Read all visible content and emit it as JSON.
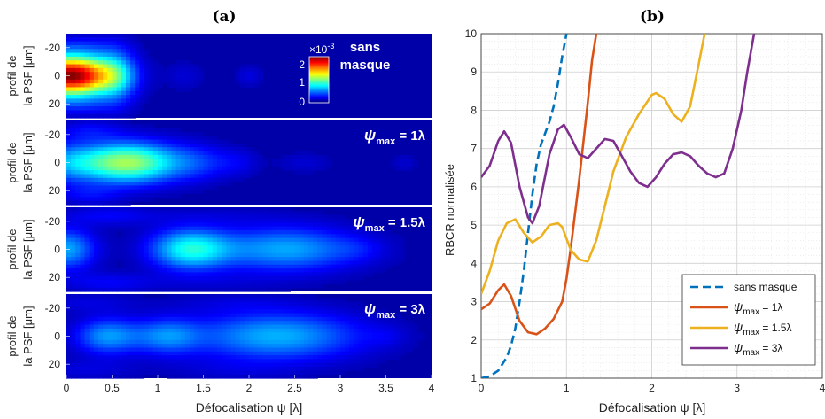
{
  "panel_a": {
    "label": "(a)",
    "xlabel": "Défocalisation ψ [λ]",
    "xticks": [
      "0",
      "0.5",
      "1",
      "1.5",
      "2",
      "2.5",
      "3",
      "3.5",
      "4"
    ],
    "ylabel_line1": "profil de",
    "ylabel_line2": "la PSF [μm]",
    "yticks": [
      "-20",
      "0",
      "20"
    ],
    "colorbar": {
      "exponent": "×10",
      "exp_power": "-3",
      "ticks": [
        "2",
        "1",
        "0"
      ]
    },
    "rows": [
      {
        "annot_line1": "sans",
        "annot_line2": "masque"
      },
      {
        "annot": "ψ",
        "annot_sub": "max",
        "annot_value": " = 1λ"
      },
      {
        "annot": "ψ",
        "annot_sub": "max",
        "annot_value": " = 1.5λ"
      },
      {
        "annot": "ψ",
        "annot_sub": "max",
        "annot_value": " = 3λ"
      }
    ]
  },
  "panel_b": {
    "label": "(b)",
    "xlabel": "Défocalisation ψ [λ]",
    "ylabel": "RBCR normalisée",
    "legend_placement": "bottom-right"
  },
  "chart_data": [
    {
      "type": "heatmap",
      "x_range": [
        0,
        4
      ],
      "y_range": [
        -30,
        30
      ],
      "color_range": [
        0,
        0.0023
      ],
      "colormap": "jet",
      "rows": [
        {
          "peaks": [
            {
              "x": 0.05,
              "y": 0,
              "amp": 2.3,
              "sx": 0.33,
              "sy": 10
            },
            {
              "x": 0.55,
              "y": 0,
              "amp": 0.42,
              "sx": 0.15,
              "sy": 14
            },
            {
              "x": 0.15,
              "y": -22,
              "amp": 0.15,
              "sx": 0.3,
              "sy": 5
            },
            {
              "x": 0.15,
              "y": 22,
              "amp": 0.15,
              "sx": 0.3,
              "sy": 5
            },
            {
              "x": 1.3,
              "y": 0,
              "amp": 0.1,
              "sx": 0.15,
              "sy": 7
            },
            {
              "x": 2.0,
              "y": 0,
              "amp": 0.13,
              "sx": 0.1,
              "sy": 5
            }
          ]
        },
        {
          "peaks": [
            {
              "x": 0.65,
              "y": 0,
              "amp": 1.2,
              "sx": 0.42,
              "sy": 10
            },
            {
              "x": 0.0,
              "y": 0,
              "amp": 0.3,
              "sx": 0.2,
              "sy": 10
            },
            {
              "x": 0.25,
              "y": -23,
              "amp": 0.18,
              "sx": 0.25,
              "sy": 5
            },
            {
              "x": 0.25,
              "y": 23,
              "amp": 0.18,
              "sx": 0.25,
              "sy": 5
            },
            {
              "x": 1.45,
              "y": 0,
              "amp": 0.2,
              "sx": 0.2,
              "sy": 9
            },
            {
              "x": 1.85,
              "y": 0,
              "amp": 0.16,
              "sx": 0.18,
              "sy": 7
            },
            {
              "x": 2.6,
              "y": 0,
              "amp": 0.1,
              "sx": 0.2,
              "sy": 5
            },
            {
              "x": 3.7,
              "y": 0,
              "amp": 0.09,
              "sx": 0.1,
              "sy": 4
            }
          ]
        },
        {
          "peaks": [
            {
              "x": 0.0,
              "y": 0,
              "amp": 0.6,
              "sx": 0.22,
              "sy": 10
            },
            {
              "x": 1.35,
              "y": 0,
              "amp": 0.8,
              "sx": 0.3,
              "sy": 10
            },
            {
              "x": 2.4,
              "y": 0,
              "amp": 0.6,
              "sx": 0.55,
              "sy": 11
            },
            {
              "x": 0.45,
              "y": -24,
              "amp": 0.18,
              "sx": 0.35,
              "sy": 5
            },
            {
              "x": 0.45,
              "y": 24,
              "amp": 0.18,
              "sx": 0.35,
              "sy": 5
            },
            {
              "x": 1.6,
              "y": -24,
              "amp": 0.07,
              "sx": 0.6,
              "sy": 5
            },
            {
              "x": 1.6,
              "y": 24,
              "amp": 0.07,
              "sx": 0.6,
              "sy": 5
            },
            {
              "x": 3.2,
              "y": 0,
              "amp": 0.1,
              "sx": 0.2,
              "sy": 6
            }
          ]
        },
        {
          "peaks": [
            {
              "x": 0.45,
              "y": 0,
              "amp": 0.55,
              "sx": 0.25,
              "sy": 9
            },
            {
              "x": 1.1,
              "y": 0,
              "amp": 0.45,
              "sx": 0.25,
              "sy": 9
            },
            {
              "x": 2.3,
              "y": 0,
              "amp": 0.62,
              "sx": 0.65,
              "sy": 12
            },
            {
              "x": 0.2,
              "y": -24,
              "amp": 0.12,
              "sx": 0.4,
              "sy": 5
            },
            {
              "x": 0.2,
              "y": 24,
              "amp": 0.12,
              "sx": 0.4,
              "sy": 5
            },
            {
              "x": 1.8,
              "y": -24,
              "amp": 0.08,
              "sx": 0.5,
              "sy": 5
            },
            {
              "x": 1.8,
              "y": 24,
              "amp": 0.08,
              "sx": 0.5,
              "sy": 5
            },
            {
              "x": 3.5,
              "y": 0,
              "amp": 0.08,
              "sx": 0.15,
              "sy": 5
            }
          ]
        }
      ]
    },
    {
      "type": "line",
      "xlim": [
        0,
        4
      ],
      "ylim": [
        1,
        10
      ],
      "xticks": [
        0,
        1,
        2,
        3,
        4
      ],
      "yticks": [
        1,
        2,
        3,
        4,
        5,
        6,
        7,
        8,
        9,
        10
      ],
      "grid": true,
      "series": [
        {
          "name": "sans masque",
          "color": "#0072bd",
          "style": "dashed",
          "x": [
            0,
            0.1,
            0.2,
            0.3,
            0.35,
            0.4,
            0.45,
            0.5,
            0.55,
            0.6,
            0.65,
            0.7,
            0.75,
            0.8,
            0.85,
            0.9,
            0.95,
            1.0
          ],
          "y": [
            1.0,
            1.05,
            1.2,
            1.55,
            1.85,
            2.3,
            3.0,
            3.8,
            4.8,
            5.8,
            6.6,
            7.1,
            7.4,
            7.7,
            8.1,
            8.7,
            9.4,
            10.0
          ]
        },
        {
          "name": "ψ",
          "name_sub": "max",
          "name_value": " = 1λ",
          "color": "#d95319",
          "x": [
            0,
            0.1,
            0.2,
            0.27,
            0.35,
            0.45,
            0.55,
            0.65,
            0.75,
            0.85,
            0.95,
            1.0,
            1.05,
            1.1,
            1.15,
            1.2,
            1.25,
            1.3,
            1.35
          ],
          "y": [
            2.8,
            2.95,
            3.3,
            3.45,
            3.15,
            2.5,
            2.2,
            2.15,
            2.3,
            2.55,
            3.0,
            3.6,
            4.4,
            5.3,
            6.2,
            7.2,
            8.2,
            9.3,
            10.0
          ]
        },
        {
          "name": "ψ",
          "name_sub": "max",
          "name_value": " = 1.5λ",
          "color": "#edb120",
          "x": [
            0,
            0.1,
            0.2,
            0.3,
            0.4,
            0.5,
            0.6,
            0.7,
            0.8,
            0.9,
            0.95,
            1.05,
            1.15,
            1.25,
            1.35,
            1.45,
            1.55,
            1.7,
            1.85,
            2.0,
            2.05,
            2.15,
            2.25,
            2.35,
            2.45,
            2.55,
            2.62
          ],
          "y": [
            3.2,
            3.8,
            4.6,
            5.05,
            5.15,
            4.8,
            4.55,
            4.7,
            5.0,
            5.05,
            4.95,
            4.35,
            4.1,
            4.05,
            4.6,
            5.5,
            6.4,
            7.3,
            7.9,
            8.4,
            8.45,
            8.3,
            7.9,
            7.7,
            8.1,
            9.2,
            10.0
          ]
        },
        {
          "name": "ψ",
          "name_sub": "max",
          "name_value": " = 3λ",
          "color": "#7e2f8e",
          "x": [
            0,
            0.1,
            0.2,
            0.27,
            0.35,
            0.45,
            0.55,
            0.6,
            0.68,
            0.8,
            0.9,
            0.97,
            1.05,
            1.15,
            1.25,
            1.35,
            1.45,
            1.55,
            1.65,
            1.75,
            1.85,
            1.95,
            2.05,
            2.15,
            2.25,
            2.35,
            2.45,
            2.55,
            2.65,
            2.75,
            2.85,
            2.95,
            3.05,
            3.12,
            3.2
          ],
          "y": [
            6.25,
            6.55,
            7.2,
            7.45,
            7.15,
            6.0,
            5.2,
            5.05,
            5.5,
            6.85,
            7.5,
            7.62,
            7.3,
            6.85,
            6.75,
            7.0,
            7.25,
            7.2,
            6.8,
            6.4,
            6.1,
            6.0,
            6.25,
            6.6,
            6.85,
            6.9,
            6.8,
            6.55,
            6.35,
            6.25,
            6.35,
            7.0,
            8.0,
            9.0,
            10.0
          ]
        }
      ]
    }
  ]
}
